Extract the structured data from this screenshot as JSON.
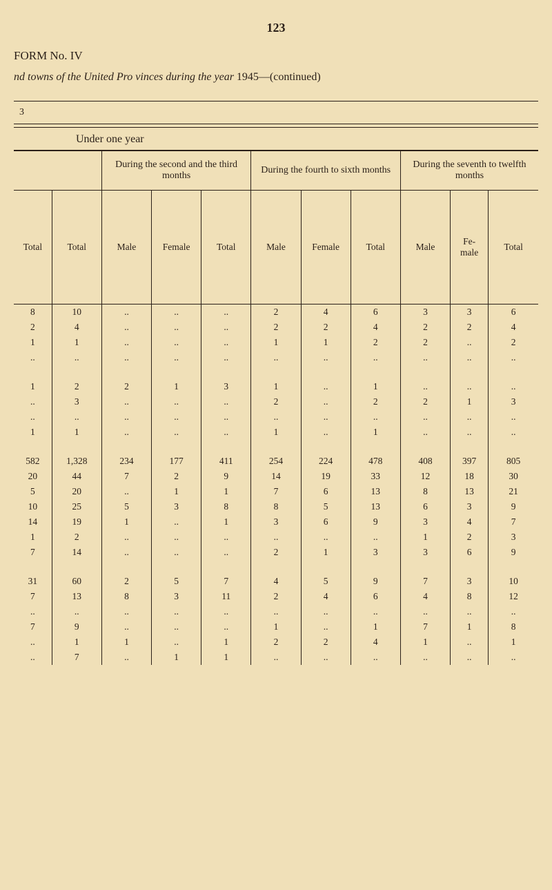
{
  "page_number": "123",
  "form_no_pre": "FORM No. ",
  "form_no_suf": "IV",
  "title_pre": "nd towns of the United ",
  "title_mid": "Pro vinces during the year",
  "title_post": " 1945—(continued)",
  "marker_3": "3",
  "under_one_year": "Under one year",
  "hdr": {
    "g1": "During the second and the third months",
    "g2": "During the fourth to sixth months",
    "g3": "During the seventh to twelfth months",
    "total": "Total",
    "total_cap": "Total",
    "male": "Male",
    "female": "Female",
    "fe_male": "Fe-\nmale",
    "total_right": "Total"
  },
  "rows": [
    [
      "8",
      "10",
      "..",
      "..",
      "..",
      "2",
      "4",
      "6",
      "3",
      "3",
      "6"
    ],
    [
      "2",
      "4",
      "..",
      "..",
      "..",
      "2",
      "2",
      "4",
      "2",
      "2",
      "4"
    ],
    [
      "1",
      "1",
      "..",
      "..",
      "..",
      "1",
      "1",
      "2",
      "2",
      "..",
      "2"
    ],
    [
      "..",
      "..",
      "..",
      "..",
      "..",
      "..",
      "..",
      "..",
      "..",
      "..",
      ".."
    ],
    [
      "",
      "",
      "",
      "",
      "",
      "",
      "",
      "",
      "",
      "",
      ""
    ],
    [
      "1",
      "2",
      "2",
      "1",
      "3",
      "1",
      "..",
      "1",
      "..",
      "..",
      ".."
    ],
    [
      "..",
      "3",
      "..",
      "..",
      "..",
      "2",
      "..",
      "2",
      "2",
      "1",
      "3"
    ],
    [
      "..",
      "..",
      "..",
      "..",
      "..",
      "..",
      "..",
      "..",
      "..",
      "..",
      ".."
    ],
    [
      "1",
      "1",
      "..",
      "..",
      "..",
      "1",
      "..",
      "1",
      "..",
      "..",
      ".."
    ],
    [
      "",
      "",
      "",
      "",
      "",
      "",
      "",
      "",
      "",
      "",
      ""
    ],
    [
      "582",
      "1,328",
      "234",
      "177",
      "411",
      "254",
      "224",
      "478",
      "408",
      "397",
      "805"
    ],
    [
      "20",
      "44",
      "7",
      "2",
      "9",
      "14",
      "19",
      "33",
      "12",
      "18",
      "30"
    ],
    [
      "5",
      "20",
      "..",
      "1",
      "1",
      "7",
      "6",
      "13",
      "8",
      "13",
      "21"
    ],
    [
      "10",
      "25",
      "5",
      "3",
      "8",
      "8",
      "5",
      "13",
      "6",
      "3",
      "9"
    ],
    [
      "14",
      "19",
      "1",
      "..",
      "1",
      "3",
      "6",
      "9",
      "3",
      "4",
      "7"
    ],
    [
      "1",
      "2",
      "..",
      "..",
      "..",
      "..",
      "..",
      "..",
      "1",
      "2",
      "3"
    ],
    [
      "7",
      "14",
      "..",
      "..",
      "..",
      "2",
      "1",
      "3",
      "3",
      "6",
      "9"
    ],
    [
      "",
      "",
      "",
      "",
      "",
      "",
      "",
      "",
      "",
      "",
      ""
    ],
    [
      "31",
      "60",
      "2",
      "5",
      "7",
      "4",
      "5",
      "9",
      "7",
      "3",
      "10"
    ],
    [
      "7",
      "13",
      "8",
      "3",
      "11",
      "2",
      "4",
      "6",
      "4",
      "8",
      "12"
    ],
    [
      "..",
      "..",
      "..",
      "..",
      "..",
      "..",
      "..",
      "..",
      "..",
      "..",
      ".."
    ],
    [
      "7",
      "9",
      "..",
      "..",
      "..",
      "1",
      "..",
      "1",
      "7",
      "1",
      "8"
    ],
    [
      "..",
      "1",
      "1",
      "..",
      "1",
      "2",
      "2",
      "4",
      "1",
      "..",
      "1"
    ],
    [
      "..",
      "7",
      "..",
      "1",
      "1",
      "..",
      "..",
      "..",
      "..",
      "..",
      ".."
    ]
  ]
}
